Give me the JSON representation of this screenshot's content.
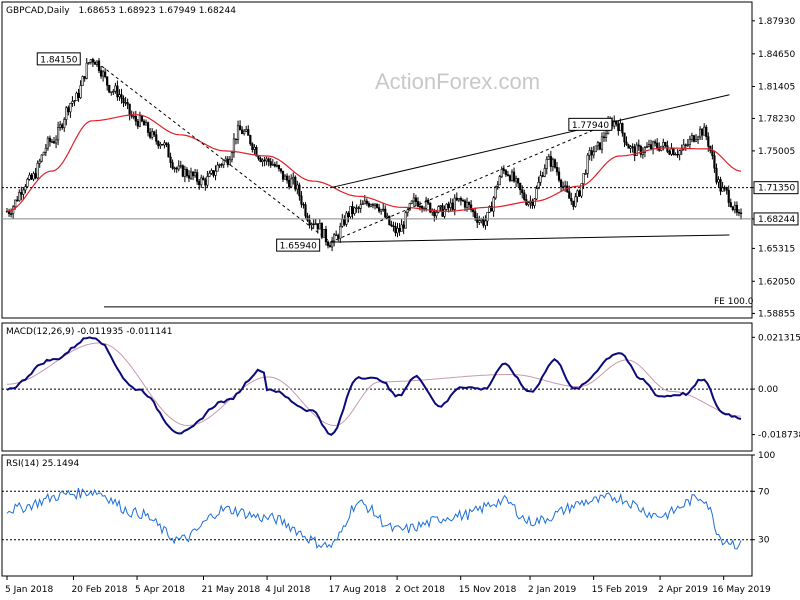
{
  "header": {
    "symbol_timeframe": "GBPCAD,Daily",
    "ohlc": "1.68653 1.68923 1.67949 1.68244"
  },
  "watermark": "ActionForex.com",
  "colors": {
    "candles": "#000000",
    "ma": "#e0202a",
    "macd_line": "#0a0a7a",
    "macd_signal": "#c89ab0",
    "rsi": "#1e6fd9",
    "trendline": "#000000",
    "dotted": "#000000",
    "grid": "#000000"
  },
  "chart_data": [
    {
      "type": "candlestick",
      "title": "GBPCAD,Daily",
      "y_ticks": [
        "1.87930",
        "1.84650",
        "1.81405",
        "1.78230",
        "1.75005",
        "1.71350",
        "1.68244",
        "1.65315",
        "1.62050",
        "1.58855"
      ],
      "ylim": [
        1.584,
        1.898
      ],
      "x_ticks": [
        "5 Jan 2018",
        "20 Feb 2018",
        "5 Apr 2018",
        "21 May 2018",
        "4 Jul 2018",
        "17 Aug 2018",
        "2 Oct 2018",
        "15 Nov 2018",
        "2 Jan 2019",
        "15 Feb 2019",
        "2 Apr 2019",
        "16 May 2019"
      ],
      "close_anchors": [
        {
          "x": "5 Jan 2018",
          "y": 1.69
        },
        {
          "x": "20 Jan 2018",
          "y": 1.72
        },
        {
          "x": "5 Feb 2018",
          "y": 1.76
        },
        {
          "x": "20 Feb 2018",
          "y": 1.8
        },
        {
          "x": "5 Mar 2018",
          "y": 1.8415
        },
        {
          "x": "20 Mar 2018",
          "y": 1.81
        },
        {
          "x": "5 Apr 2018",
          "y": 1.78
        },
        {
          "x": "20 Apr 2018",
          "y": 1.76
        },
        {
          "x": "5 May 2018",
          "y": 1.73
        },
        {
          "x": "21 May 2018",
          "y": 1.72
        },
        {
          "x": "5 Jun 2018",
          "y": 1.74
        },
        {
          "x": "15 Jun 2018",
          "y": 1.77
        },
        {
          "x": "4 Jul 2018",
          "y": 1.74
        },
        {
          "x": "20 Jul 2018",
          "y": 1.72
        },
        {
          "x": "5 Aug 2018",
          "y": 1.68
        },
        {
          "x": "17 Aug 2018",
          "y": 1.6594
        },
        {
          "x": "1 Sep 2018",
          "y": 1.69
        },
        {
          "x": "15 Sep 2018",
          "y": 1.7
        },
        {
          "x": "2 Oct 2018",
          "y": 1.67
        },
        {
          "x": "15 Oct 2018",
          "y": 1.7
        },
        {
          "x": "1 Nov 2018",
          "y": 1.69
        },
        {
          "x": "15 Nov 2018",
          "y": 1.7
        },
        {
          "x": "1 Dec 2018",
          "y": 1.68
        },
        {
          "x": "15 Dec 2018",
          "y": 1.73
        },
        {
          "x": "2 Jan 2019",
          "y": 1.7
        },
        {
          "x": "15 Jan 2019",
          "y": 1.74
        },
        {
          "x": "1 Feb 2019",
          "y": 1.7
        },
        {
          "x": "15 Feb 2019",
          "y": 1.75
        },
        {
          "x": "1 Mar 2019",
          "y": 1.7794
        },
        {
          "x": "15 Mar 2019",
          "y": 1.75
        },
        {
          "x": "2 Apr 2019",
          "y": 1.755
        },
        {
          "x": "15 Apr 2019",
          "y": 1.75
        },
        {
          "x": "1 May 2019",
          "y": 1.77
        },
        {
          "x": "16 May 2019",
          "y": 1.71
        },
        {
          "x": "28 May 2019",
          "y": 1.68244
        }
      ],
      "moving_average_anchors": [
        {
          "x": "5 Jan 2018",
          "y": 1.69
        },
        {
          "x": "5 Feb 2018",
          "y": 1.73
        },
        {
          "x": "5 Mar 2018",
          "y": 1.78
        },
        {
          "x": "5 Apr 2018",
          "y": 1.786
        },
        {
          "x": "5 May 2018",
          "y": 1.766
        },
        {
          "x": "5 Jun 2018",
          "y": 1.75
        },
        {
          "x": "4 Jul 2018",
          "y": 1.745
        },
        {
          "x": "5 Aug 2018",
          "y": 1.72
        },
        {
          "x": "5 Sep 2018",
          "y": 1.705
        },
        {
          "x": "5 Oct 2018",
          "y": 1.694
        },
        {
          "x": "5 Nov 2018",
          "y": 1.69
        },
        {
          "x": "5 Dec 2018",
          "y": 1.694
        },
        {
          "x": "5 Jan 2019",
          "y": 1.7
        },
        {
          "x": "5 Feb 2019",
          "y": 1.715
        },
        {
          "x": "5 Mar 2019",
          "y": 1.745
        },
        {
          "x": "5 Apr 2019",
          "y": 1.753
        },
        {
          "x": "5 May 2019",
          "y": 1.752
        },
        {
          "x": "28 May 2019",
          "y": 1.73
        }
      ],
      "annotations": [
        {
          "text": "1.84150",
          "x": "5 Mar 2018",
          "y": 1.8415
        },
        {
          "text": "1.65940",
          "x": "17 Aug 2018",
          "y": 1.6594
        },
        {
          "text": "1.77940",
          "x": "1 Mar 2019",
          "y": 1.7794
        },
        {
          "text": "1.71350",
          "y": 1.7135
        },
        {
          "text": "1.68244",
          "y": 1.68244
        },
        {
          "text": "FE 100.0",
          "y": 1.595
        }
      ],
      "trendlines": [
        {
          "from": {
            "x": "17 Aug 2018",
            "y": 1.7135
          },
          "to": {
            "x": "20 May 2019",
            "y": 1.8058
          }
        },
        {
          "from": {
            "x": "17 Aug 2018",
            "y": 1.6594
          },
          "to": {
            "x": "20 May 2019",
            "y": 1.6665
          }
        },
        {
          "from": {
            "x": "5 Mar 2018",
            "y": 1.8415
          },
          "to": {
            "x": "17 Aug 2018",
            "y": 1.6594
          },
          "style": "dashed"
        },
        {
          "from": {
            "x": "17 Aug 2018",
            "y": 1.6594
          },
          "to": {
            "x": "1 Mar 2019",
            "y": 1.7794
          },
          "style": "dashed"
        }
      ]
    },
    {
      "type": "line",
      "title": "MACD(12,26,9) -0.011935 -0.011141",
      "y_ticks": [
        "0.021315",
        "0.00",
        "-0.018738"
      ],
      "ylim": [
        -0.0255,
        0.0272
      ],
      "series": [
        {
          "values_anchors": [
            {
              "x": "5 Jan 2018",
              "y": 0.0
            },
            {
              "x": "5 Feb 2018",
              "y": 0.012
            },
            {
              "x": "5 Mar 2018",
              "y": 0.0215
            },
            {
              "x": "5 Apr 2018",
              "y": 0.0
            },
            {
              "x": "5 May 2018",
              "y": -0.018
            },
            {
              "x": "5 Jun 2018",
              "y": -0.005
            },
            {
              "x": "1 Jul 2018",
              "y": 0.008
            },
            {
              "x": "4 Jul 2018",
              "y": 0.0
            },
            {
              "x": "5 Aug 2018",
              "y": -0.009
            },
            {
              "x": "17 Aug 2018",
              "y": -0.019
            },
            {
              "x": "5 Sep 2018",
              "y": 0.005
            },
            {
              "x": "20 Sep 2018",
              "y": 0.004
            },
            {
              "x": "2 Oct 2018",
              "y": -0.003
            },
            {
              "x": "15 Oct 2018",
              "y": 0.005
            },
            {
              "x": "1 Nov 2018",
              "y": -0.007
            },
            {
              "x": "15 Nov 2018",
              "y": 0.001
            },
            {
              "x": "1 Dec 2018",
              "y": 0.0
            },
            {
              "x": "15 Dec 2018",
              "y": 0.01
            },
            {
              "x": "2 Jan 2019",
              "y": -0.001
            },
            {
              "x": "20 Jan 2019",
              "y": 0.012
            },
            {
              "x": "1 Feb 2019",
              "y": 0.0
            },
            {
              "x": "5 Mar 2019",
              "y": 0.015
            },
            {
              "x": "20 Mar 2019",
              "y": 0.004
            },
            {
              "x": "2 Apr 2019",
              "y": -0.003
            },
            {
              "x": "20 Apr 2019",
              "y": -0.002
            },
            {
              "x": "1 May 2019",
              "y": 0.004
            },
            {
              "x": "16 May 2019",
              "y": -0.01
            },
            {
              "x": "28 May 2019",
              "y": -0.011935
            }
          ]
        },
        {
          "values_anchors": [
            {
              "x": "5 Jan 2018",
              "y": 0.002
            },
            {
              "x": "10 Mar 2018",
              "y": 0.019
            },
            {
              "x": "10 May 2018",
              "y": -0.015
            },
            {
              "x": "5 Jul 2018",
              "y": 0.005
            },
            {
              "x": "20 Aug 2018",
              "y": -0.015
            },
            {
              "x": "20 Sep 2018",
              "y": 0.003
            },
            {
              "x": "20 Dec 2018",
              "y": 0.006
            },
            {
              "x": "5 Feb 2019",
              "y": 0.001
            },
            {
              "x": "10 Mar 2019",
              "y": 0.012
            },
            {
              "x": "10 Apr 2019",
              "y": -0.001
            },
            {
              "x": "28 May 2019",
              "y": -0.011141
            }
          ]
        }
      ]
    },
    {
      "type": "line",
      "title": "RSI(14) 25.1494",
      "y_ticks": [
        "100",
        "70",
        "30"
      ],
      "ylim": [
        0,
        100
      ],
      "series": [
        {
          "values_anchors": [
            {
              "x": "5 Jan 2018",
              "y": 55
            },
            {
              "x": "20 Feb 2018",
              "y": 68
            },
            {
              "x": "5 Mar 2018",
              "y": 70
            },
            {
              "x": "5 Apr 2018",
              "y": 52
            },
            {
              "x": "5 May 2018",
              "y": 30
            },
            {
              "x": "5 Jun 2018",
              "y": 55
            },
            {
              "x": "4 Jul 2018",
              "y": 48
            },
            {
              "x": "17 Aug 2018",
              "y": 25
            },
            {
              "x": "5 Sep 2018",
              "y": 60
            },
            {
              "x": "2 Oct 2018",
              "y": 38
            },
            {
              "x": "15 Nov 2018",
              "y": 50
            },
            {
              "x": "15 Dec 2018",
              "y": 62
            },
            {
              "x": "2 Jan 2019",
              "y": 45
            },
            {
              "x": "15 Feb 2019",
              "y": 62
            },
            {
              "x": "1 Mar 2019",
              "y": 65
            },
            {
              "x": "2 Apr 2019",
              "y": 50
            },
            {
              "x": "1 May 2019",
              "y": 65
            },
            {
              "x": "16 May 2019",
              "y": 30
            },
            {
              "x": "28 May 2019",
              "y": 25.1494
            }
          ]
        }
      ]
    }
  ]
}
